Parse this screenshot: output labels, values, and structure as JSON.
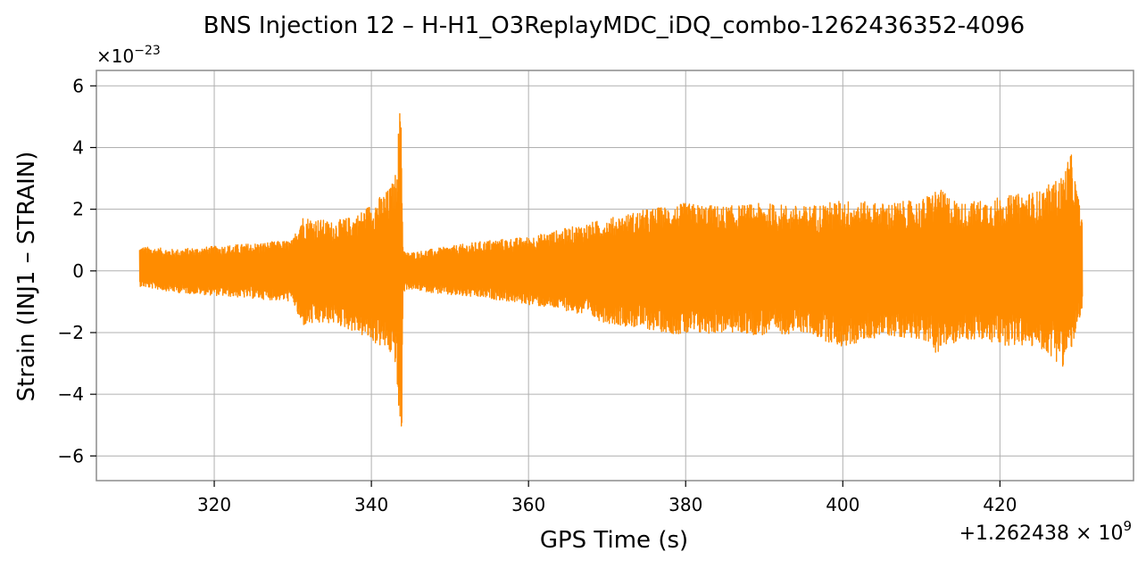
{
  "chart_data": {
    "type": "line",
    "title": "BNS Injection 12 – H-H1_O3ReplayMDC_iDQ_combo-1262436352-4096",
    "xlabel": "GPS Time (s)",
    "ylabel": "Strain (INJ1 – STRAIN)",
    "x_offset_label": "+1.262438 × 10",
    "x_offset_exponent": "9",
    "y_scale_label": "×10",
    "y_scale_exponent": "−23",
    "xlim": [
      305,
      437
    ],
    "ylim": [
      -6.8,
      6.5
    ],
    "x_ticks": [
      320,
      340,
      360,
      380,
      400,
      420
    ],
    "x_tick_labels": [
      "320",
      "340",
      "360",
      "380",
      "400",
      "420"
    ],
    "y_ticks": [
      -6,
      -4,
      -2,
      0,
      2,
      4,
      6
    ],
    "y_tick_labels": [
      "−6",
      "−4",
      "−2",
      "0",
      "2",
      "4",
      "6"
    ],
    "grid": true,
    "series": [
      {
        "color": "#ff8c00",
        "x_start": 310.5,
        "x_end": 430.5,
        "envelope": {
          "x": [
            310.5,
            315,
            320,
            325,
            330,
            331,
            335,
            338,
            340,
            342,
            343,
            343.8,
            344,
            344.3,
            345,
            350,
            355,
            360,
            365,
            370,
            375,
            380,
            385,
            390,
            395,
            400,
            405,
            410,
            412,
            415,
            420,
            425,
            428,
            429,
            430.5
          ],
          "upper": [
            0.8,
            0.7,
            0.8,
            0.9,
            1.0,
            1.8,
            1.6,
            1.8,
            2.2,
            2.6,
            3.0,
            5.9,
            0.9,
            0.6,
            0.6,
            0.8,
            1.0,
            1.1,
            1.4,
            1.7,
            2.0,
            2.2,
            2.1,
            2.2,
            2.1,
            2.3,
            2.2,
            2.3,
            2.7,
            2.2,
            2.4,
            2.6,
            3.1,
            3.9,
            1.6
          ],
          "lower": [
            -0.5,
            -0.7,
            -0.8,
            -0.9,
            -1.0,
            -1.8,
            -1.7,
            -2.0,
            -2.3,
            -2.6,
            -3.0,
            -6.2,
            -0.8,
            -0.6,
            -0.6,
            -0.8,
            -0.9,
            -1.1,
            -1.3,
            -1.7,
            -1.9,
            -2.1,
            -2.0,
            -2.1,
            -2.0,
            -2.5,
            -2.1,
            -2.2,
            -2.7,
            -2.2,
            -2.4,
            -2.5,
            -3.1,
            -2.6,
            -1.4
          ]
        }
      }
    ]
  }
}
